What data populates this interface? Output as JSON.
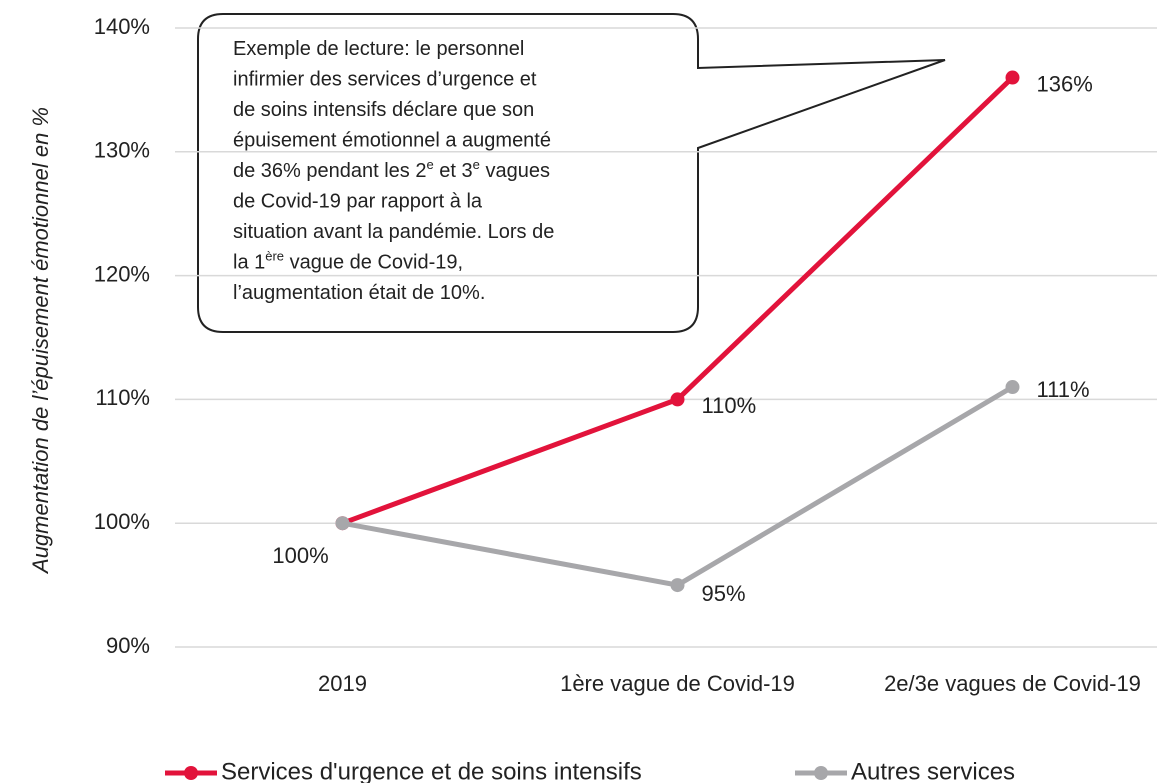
{
  "chart_data": {
    "type": "line",
    "ylabel": "Augmentation de l’épuisement émotionnel en %",
    "categories": [
      "2019",
      "1ère vague de Covid-19",
      "2e/3e vagues de Covid-19"
    ],
    "series": [
      {
        "name": "Services d'urgence et de soins intensifs",
        "color": "#e2133b",
        "values": [
          100,
          110,
          136
        ],
        "value_labels": [
          null,
          "110%",
          "136%"
        ]
      },
      {
        "name": "Autres services",
        "color": "#a7a7aa",
        "values": [
          100,
          95,
          111
        ],
        "value_labels": [
          "100%",
          "95%",
          "111%"
        ]
      }
    ],
    "ylim": [
      90,
      140
    ],
    "yticks": [
      {
        "value": 90,
        "label": "90%"
      },
      {
        "value": 100,
        "label": "100%"
      },
      {
        "value": 110,
        "label": "110%"
      },
      {
        "value": 120,
        "label": "120%"
      },
      {
        "value": 130,
        "label": "130%"
      },
      {
        "value": 140,
        "label": "140%"
      }
    ],
    "grid": true,
    "legend": "bottom",
    "annotation": {
      "lines": [
        [
          "Exemple de lecture: le personnel"
        ],
        [
          "infirmier des services d’urgence et"
        ],
        [
          "de soins intensifs déclare que son"
        ],
        [
          "épuisement émotionnel a augmenté"
        ],
        [
          "de 36% pendant les 2",
          "e",
          " et 3",
          "e",
          " vagues"
        ],
        [
          "de Covid-19 par rapport à la"
        ],
        [
          "situation avant la pandémie. Lors de"
        ],
        [
          "la 1",
          "ère",
          " vague de Covid-19,"
        ],
        [
          "l’augmentation était de 10%."
        ]
      ]
    }
  }
}
